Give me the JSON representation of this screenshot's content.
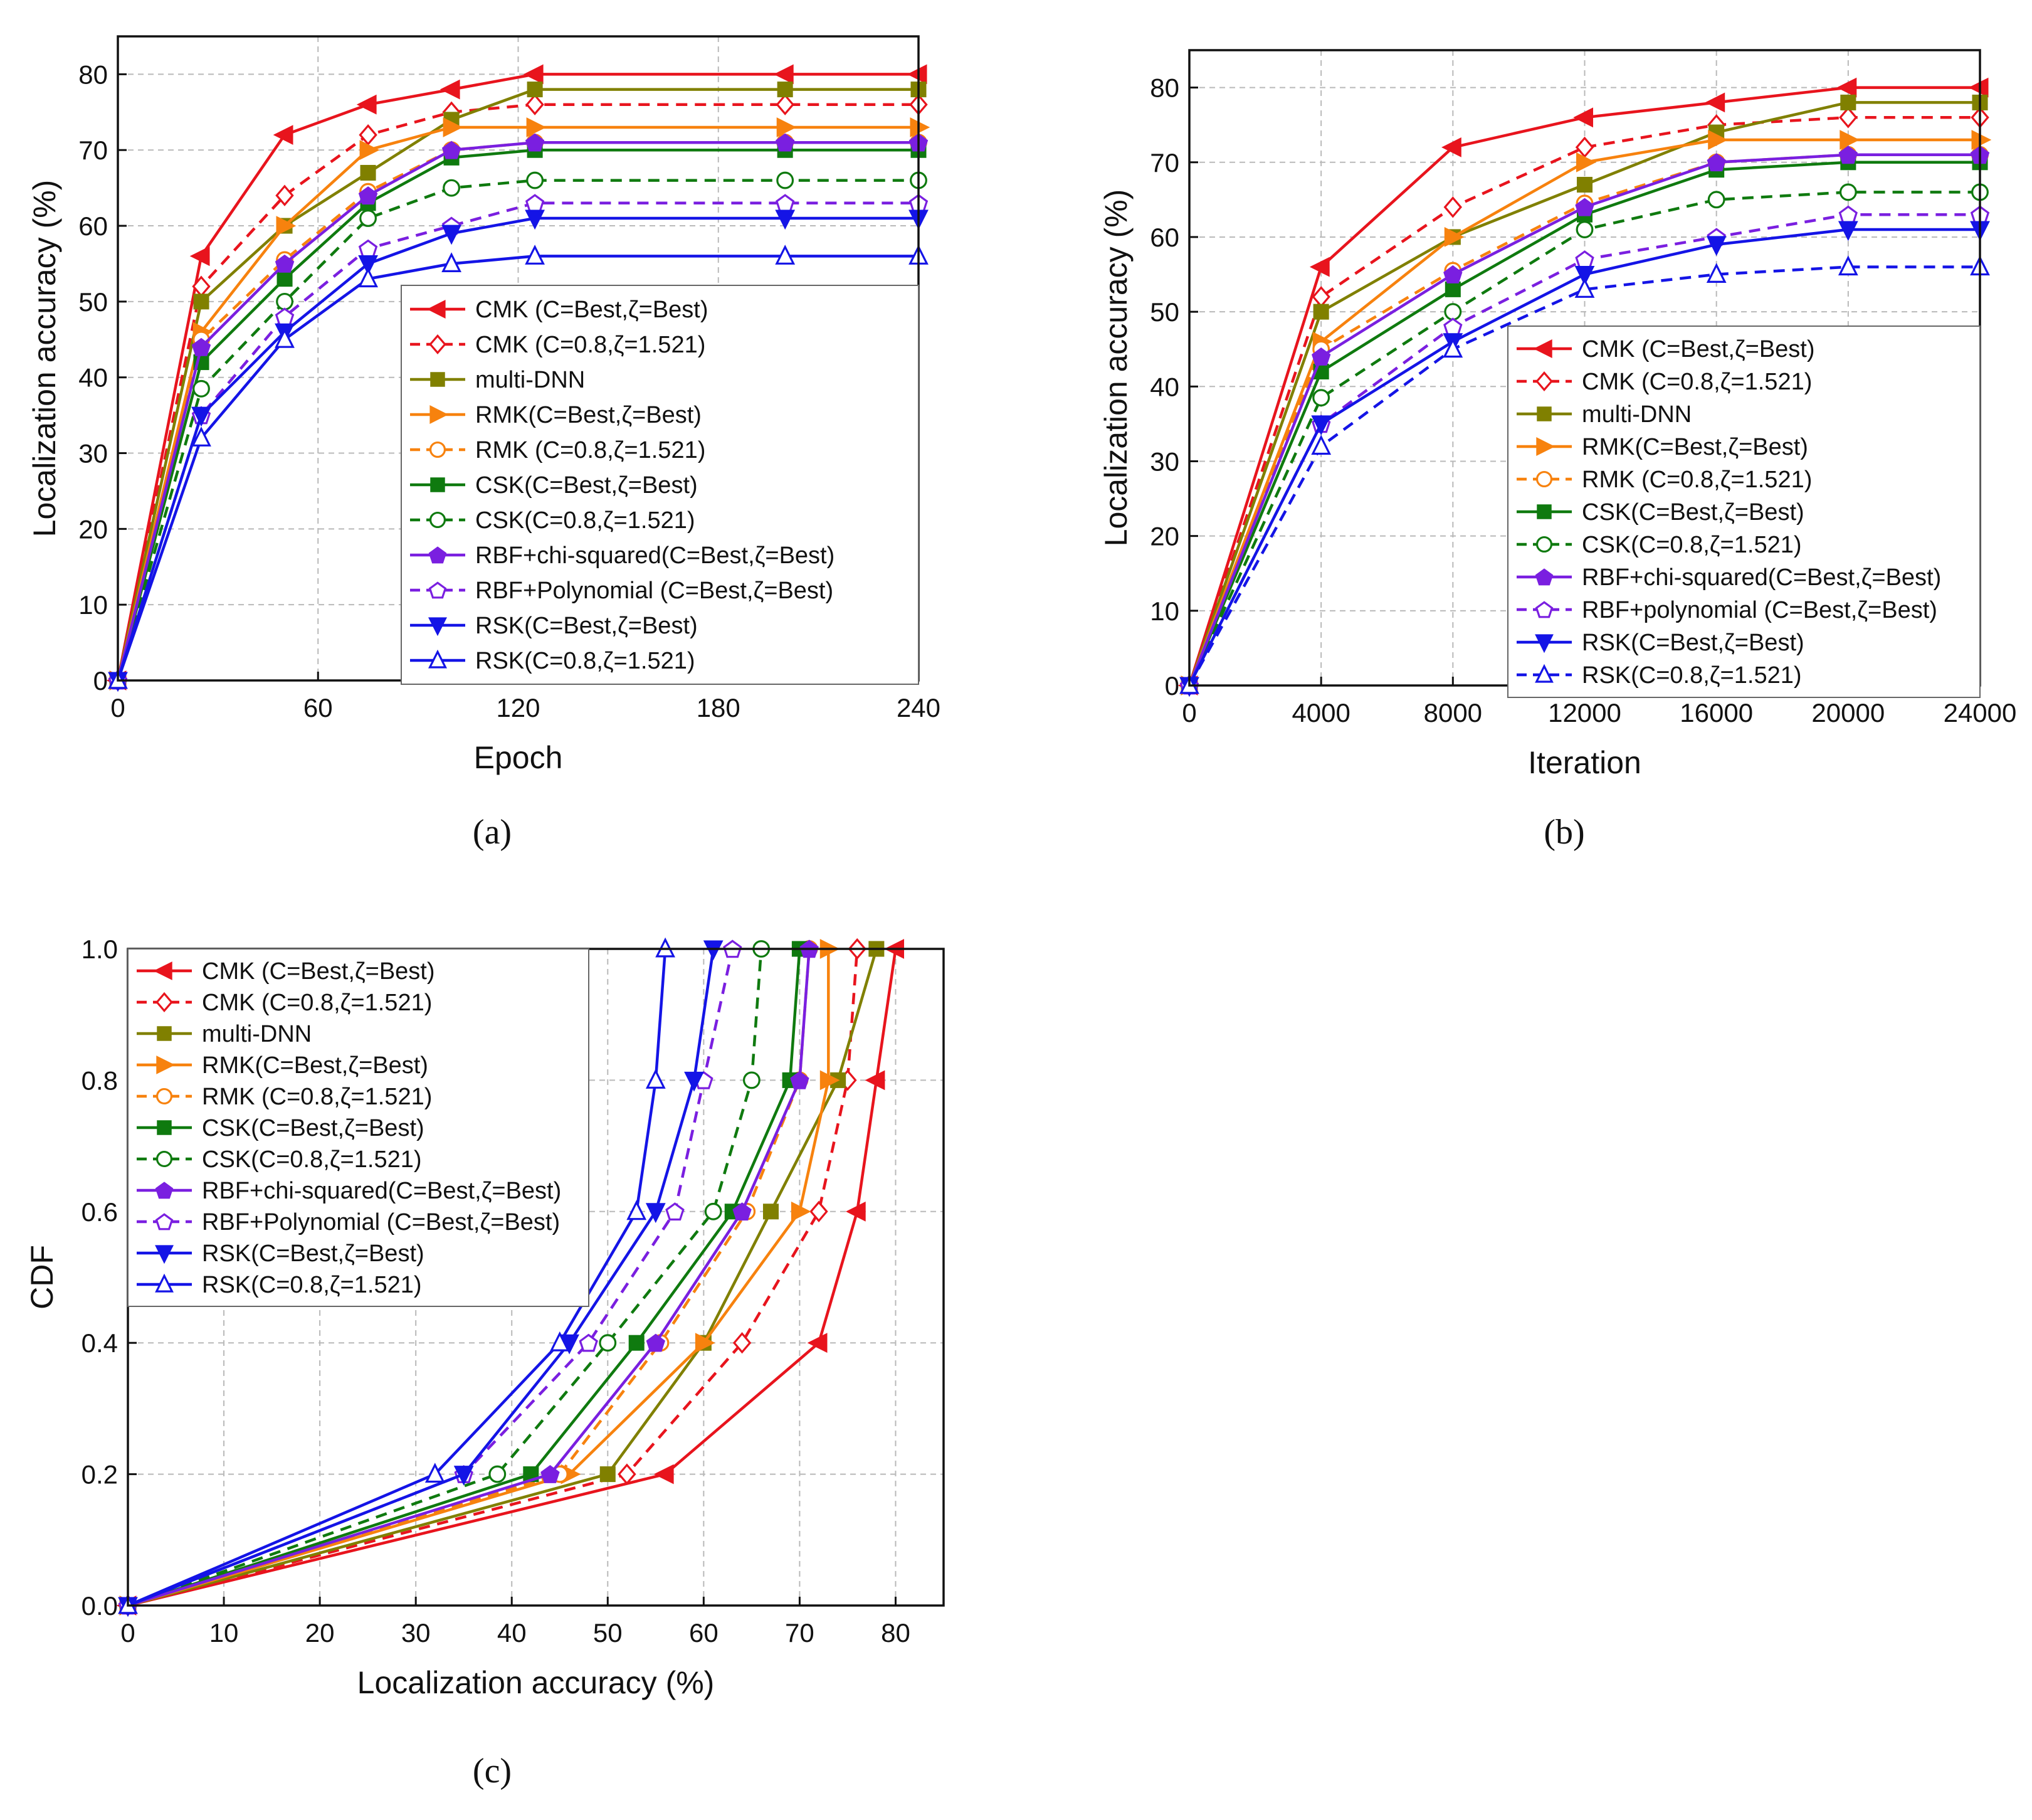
{
  "chart_data": [
    {
      "id": "a",
      "type": "line",
      "caption": "(a)",
      "xlabel": "Epoch",
      "ylabel": "Localization accuracy (%)",
      "xlim": [
        0,
        240
      ],
      "ylim": [
        0,
        85
      ],
      "xticks": [
        0,
        60,
        120,
        180,
        240
      ],
      "yticks": [
        0,
        10,
        20,
        30,
        40,
        50,
        60,
        70,
        80
      ],
      "grid": true,
      "legend_position": "bottom-right",
      "x": [
        0,
        25,
        50,
        75,
        100,
        125,
        200,
        240
      ],
      "series": [
        {
          "name": "CMK (C=Best,ζ=Best)",
          "color": "#e8141d",
          "dash": "solid",
          "marker": "triangle-left-filled",
          "values": [
            0,
            56,
            72,
            76,
            78,
            80,
            80,
            80
          ]
        },
        {
          "name": "CMK (C=0.8,ζ=1.521)",
          "color": "#e8141d",
          "dash": "dashed",
          "marker": "diamond-open",
          "values": [
            0,
            52,
            64,
            72,
            75,
            76,
            76,
            76
          ]
        },
        {
          "name": "multi-DNN",
          "color": "#808000",
          "dash": "solid",
          "marker": "square-filled",
          "values": [
            0,
            50,
            60,
            67,
            74,
            78,
            78,
            78
          ]
        },
        {
          "name": "RMK(C=Best,ζ=Best)",
          "color": "#f7820e",
          "dash": "solid",
          "marker": "triangle-right-filled",
          "values": [
            0,
            46,
            60,
            70,
            73,
            73,
            73,
            73
          ]
        },
        {
          "name": "RMK (C=0.8,ζ=1.521)",
          "color": "#f7820e",
          "dash": "dashed",
          "marker": "circle-open",
          "values": [
            0,
            45,
            55.5,
            64.5,
            70,
            71,
            71,
            71
          ]
        },
        {
          "name": "CSK(C=Best,ζ=Best)",
          "color": "#0f7a0f",
          "dash": "solid",
          "marker": "square-filled",
          "values": [
            0,
            42,
            53,
            63,
            69,
            70,
            70,
            70
          ]
        },
        {
          "name": "CSK(C=0.8,ζ=1.521)",
          "color": "#0f7a0f",
          "dash": "dashed",
          "marker": "circle-open",
          "values": [
            0,
            38.5,
            50,
            61,
            65,
            66,
            66,
            66
          ]
        },
        {
          "name": "RBF+chi-squared(C=Best,ζ=Best)",
          "color": "#7a1fe0",
          "dash": "solid",
          "marker": "pentagon-filled",
          "values": [
            0,
            44,
            55,
            64,
            70,
            71,
            71,
            71
          ]
        },
        {
          "name": "RBF+Polynomial (C=Best,ζ=Best)",
          "color": "#7a1fe0",
          "dash": "dashed",
          "marker": "pentagon-open",
          "values": [
            0,
            35,
            48,
            57,
            60,
            63,
            63,
            63
          ]
        },
        {
          "name": "RSK(C=Best,ζ=Best)",
          "color": "#1414e6",
          "dash": "solid",
          "marker": "triangle-down-filled",
          "values": [
            0,
            35,
            46,
            55,
            59,
            61,
            61,
            61
          ]
        },
        {
          "name": "RSK(C=0.8,ζ=1.521)",
          "color": "#1414e6",
          "dash": "solid",
          "marker": "triangle-up-open",
          "values": [
            0,
            32,
            45,
            53,
            55,
            56,
            56,
            56
          ]
        }
      ]
    },
    {
      "id": "b",
      "type": "line",
      "caption": "(b)",
      "xlabel": "Iteration",
      "ylabel": "Localization accuracy (%)",
      "xlim": [
        0,
        24000
      ],
      "ylim": [
        0,
        85
      ],
      "xticks": [
        0,
        4000,
        8000,
        12000,
        16000,
        20000,
        24000
      ],
      "yticks": [
        0,
        10,
        20,
        30,
        40,
        50,
        60,
        70,
        80
      ],
      "grid": true,
      "legend_position": "bottom-right",
      "x": [
        0,
        4000,
        8000,
        12000,
        16000,
        20000,
        24000
      ],
      "series": [
        {
          "name": "CMK (C=Best,ζ=Best)",
          "color": "#e8141d",
          "dash": "solid",
          "marker": "triangle-left-filled",
          "values": [
            0,
            56,
            72,
            76,
            78,
            80,
            80
          ]
        },
        {
          "name": "CMK (C=0.8,ζ=1.521)",
          "color": "#e8141d",
          "dash": "dashed",
          "marker": "diamond-open",
          "values": [
            0,
            52,
            64,
            72,
            75,
            76,
            76
          ]
        },
        {
          "name": "multi-DNN",
          "color": "#808000",
          "dash": "solid",
          "marker": "square-filled",
          "values": [
            0,
            50,
            60,
            67,
            74,
            78,
            78
          ]
        },
        {
          "name": "RMK(C=Best,ζ=Best)",
          "color": "#f7820e",
          "dash": "solid",
          "marker": "triangle-right-filled",
          "values": [
            0,
            46,
            60,
            70,
            73,
            73,
            73
          ]
        },
        {
          "name": "RMK (C=0.8,ζ=1.521)",
          "color": "#f7820e",
          "dash": "dashed",
          "marker": "circle-open",
          "values": [
            0,
            45,
            55.5,
            64.5,
            70,
            71,
            71
          ]
        },
        {
          "name": "CSK(C=Best,ζ=Best)",
          "color": "#0f7a0f",
          "dash": "solid",
          "marker": "square-filled",
          "values": [
            0,
            42,
            53,
            63,
            69,
            70,
            70
          ]
        },
        {
          "name": "CSK(C=0.8,ζ=1.521)",
          "color": "#0f7a0f",
          "dash": "dashed",
          "marker": "circle-open",
          "values": [
            0,
            38.5,
            50,
            61,
            65,
            66,
            66
          ]
        },
        {
          "name": "RBF+chi-squared(C=Best,ζ=Best)",
          "color": "#7a1fe0",
          "dash": "solid",
          "marker": "pentagon-filled",
          "values": [
            0,
            44,
            55,
            64,
            70,
            71,
            71
          ]
        },
        {
          "name": "RBF+polynomial (C=Best,ζ=Best)",
          "color": "#7a1fe0",
          "dash": "dashed",
          "marker": "pentagon-open",
          "values": [
            0,
            35,
            48,
            57,
            60,
            63,
            63
          ]
        },
        {
          "name": "RSK(C=Best,ζ=Best)",
          "color": "#1414e6",
          "dash": "solid",
          "marker": "triangle-down-filled",
          "values": [
            0,
            35,
            46,
            55,
            59,
            61,
            61
          ]
        },
        {
          "name": "RSK(C=0.8,ζ=1.521)",
          "color": "#1414e6",
          "dash": "dashed",
          "marker": "triangle-up-open",
          "values": [
            0,
            32,
            45,
            53,
            55,
            56,
            56
          ]
        }
      ]
    },
    {
      "id": "c",
      "type": "line",
      "caption": "(c)",
      "xlabel": "Localization accuracy (%)",
      "ylabel": "CDF",
      "xlim": [
        0,
        85
      ],
      "ylim": [
        0,
        1.0
      ],
      "xticks": [
        0,
        10,
        20,
        30,
        40,
        50,
        60,
        70,
        80
      ],
      "yticks": [
        0.0,
        0.2,
        0.4,
        0.6,
        0.8,
        1.0
      ],
      "ytick_labels": [
        "0.0",
        "0.2",
        "0.4",
        "0.6",
        "0.8",
        "1.0"
      ],
      "grid": true,
      "legend_position": "top-left",
      "y": [
        0,
        0.2,
        0.4,
        0.6,
        0.8,
        1.0
      ],
      "series": [
        {
          "name": "CMK (C=Best,ζ=Best)",
          "color": "#e8141d",
          "dash": "solid",
          "marker": "triangle-left-filled",
          "x": [
            0,
            56,
            72,
            76,
            78,
            80
          ]
        },
        {
          "name": "CMK (C=0.8,ζ=1.521)",
          "color": "#e8141d",
          "dash": "dashed",
          "marker": "diamond-open",
          "x": [
            0,
            52,
            64,
            72,
            75,
            76
          ]
        },
        {
          "name": "multi-DNN",
          "color": "#808000",
          "dash": "solid",
          "marker": "square-filled",
          "x": [
            0,
            50,
            60,
            67,
            74,
            78
          ]
        },
        {
          "name": "RMK(C=Best,ζ=Best)",
          "color": "#f7820e",
          "dash": "solid",
          "marker": "triangle-right-filled",
          "x": [
            0,
            46,
            60,
            70,
            73,
            73
          ]
        },
        {
          "name": "RMK (C=0.8,ζ=1.521)",
          "color": "#f7820e",
          "dash": "dashed",
          "marker": "circle-open",
          "x": [
            0,
            45,
            55.5,
            64.5,
            70,
            71
          ]
        },
        {
          "name": "CSK(C=Best,ζ=Best)",
          "color": "#0f7a0f",
          "dash": "solid",
          "marker": "square-filled",
          "x": [
            0,
            42,
            53,
            63,
            69,
            70
          ]
        },
        {
          "name": "CSK(C=0.8,ζ=1.521)",
          "color": "#0f7a0f",
          "dash": "dashed",
          "marker": "circle-open",
          "x": [
            0,
            38.5,
            50,
            61,
            65,
            66
          ]
        },
        {
          "name": "RBF+chi-squared(C=Best,ζ=Best)",
          "color": "#7a1fe0",
          "dash": "solid",
          "marker": "pentagon-filled",
          "x": [
            0,
            44,
            55,
            64,
            70,
            71
          ]
        },
        {
          "name": "RBF+Polynomial (C=Best,ζ=Best)",
          "color": "#7a1fe0",
          "dash": "dashed",
          "marker": "pentagon-open",
          "x": [
            0,
            35,
            48,
            57,
            60,
            63
          ]
        },
        {
          "name": "RSK(C=Best,ζ=Best)",
          "color": "#1414e6",
          "dash": "solid",
          "marker": "triangle-down-filled",
          "x": [
            0,
            35,
            46,
            55,
            59,
            61
          ]
        },
        {
          "name": "RSK(C=0.8,ζ=1.521)",
          "color": "#1414e6",
          "dash": "solid",
          "marker": "triangle-up-open",
          "x": [
            0,
            32,
            45,
            53,
            55,
            56
          ]
        }
      ]
    }
  ]
}
